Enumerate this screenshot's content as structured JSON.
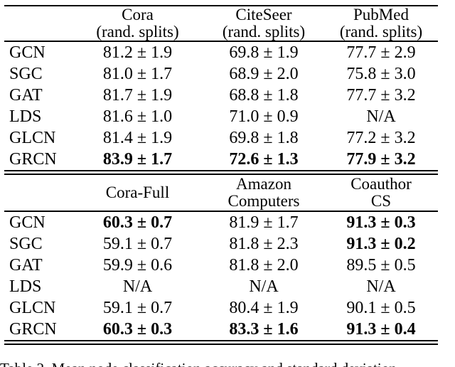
{
  "table": {
    "row_header_labels": [
      "GCN",
      "SGC",
      "GAT",
      "LDS",
      "GLCN",
      "GRCN"
    ],
    "sections": [
      {
        "name": "random-splits-datasets",
        "columns": [
          [
            "Cora",
            "(rand. splits)"
          ],
          [
            "CiteSeer",
            "(rand. splits)"
          ],
          [
            "PubMed",
            "(rand. splits)"
          ]
        ],
        "rows": [
          {
            "model": "GCN",
            "values": [
              {
                "text": "81.2 ± 1.9",
                "bold": false
              },
              {
                "text": "69.8 ± 1.9",
                "bold": false
              },
              {
                "text": "77.7 ± 2.9",
                "bold": false
              }
            ]
          },
          {
            "model": "SGC",
            "values": [
              {
                "text": "81.0 ± 1.7",
                "bold": false
              },
              {
                "text": "68.9 ± 2.0",
                "bold": false
              },
              {
                "text": "75.8 ± 3.0",
                "bold": false
              }
            ]
          },
          {
            "model": "GAT",
            "values": [
              {
                "text": "81.7 ± 1.9",
                "bold": false
              },
              {
                "text": "68.8 ± 1.8",
                "bold": false
              },
              {
                "text": "77.7 ± 3.2",
                "bold": false
              }
            ]
          },
          {
            "model": "LDS",
            "values": [
              {
                "text": "81.6 ± 1.0",
                "bold": false
              },
              {
                "text": "71.0 ± 0.9",
                "bold": false
              },
              {
                "text": "N/A",
                "bold": false
              }
            ]
          },
          {
            "model": "GLCN",
            "values": [
              {
                "text": "81.4 ± 1.9",
                "bold": false
              },
              {
                "text": "69.8 ± 1.8",
                "bold": false
              },
              {
                "text": "77.2 ± 3.2",
                "bold": false
              }
            ]
          },
          {
            "model": "GRCN",
            "values": [
              {
                "text": "83.9 ± 1.7",
                "bold": true
              },
              {
                "text": "72.6 ± 1.3",
                "bold": true
              },
              {
                "text": "77.9 ± 3.2",
                "bold": true
              }
            ]
          }
        ]
      },
      {
        "name": "larger-datasets",
        "columns": [
          [
            "Cora-Full"
          ],
          [
            "Amazon",
            "Computers"
          ],
          [
            "Coauthor",
            "CS"
          ]
        ],
        "rows": [
          {
            "model": "GCN",
            "values": [
              {
                "text": "60.3 ± 0.7",
                "bold": true
              },
              {
                "text": "81.9 ± 1.7",
                "bold": false
              },
              {
                "text": "91.3 ± 0.3",
                "bold": true
              }
            ]
          },
          {
            "model": "SGC",
            "values": [
              {
                "text": "59.1 ± 0.7",
                "bold": false
              },
              {
                "text": "81.8 ± 2.3",
                "bold": false
              },
              {
                "text": "91.3 ± 0.2",
                "bold": true
              }
            ]
          },
          {
            "model": "GAT",
            "values": [
              {
                "text": "59.9 ± 0.6",
                "bold": false
              },
              {
                "text": "81.8 ± 2.0",
                "bold": false
              },
              {
                "text": "89.5 ± 0.5",
                "bold": false
              }
            ]
          },
          {
            "model": "LDS",
            "values": [
              {
                "text": "N/A",
                "bold": false
              },
              {
                "text": "N/A",
                "bold": false
              },
              {
                "text": "N/A",
                "bold": false
              }
            ]
          },
          {
            "model": "GLCN",
            "values": [
              {
                "text": "59.1 ± 0.7",
                "bold": false
              },
              {
                "text": "80.4 ± 1.9",
                "bold": false
              },
              {
                "text": "90.1 ± 0.5",
                "bold": false
              }
            ]
          },
          {
            "model": "GRCN",
            "values": [
              {
                "text": "60.3 ± 0.3",
                "bold": true
              },
              {
                "text": "83.3 ± 1.6",
                "bold": true
              },
              {
                "text": "91.3 ± 0.4",
                "bold": true
              }
            ]
          }
        ]
      }
    ]
  },
  "caption": {
    "text": "Table 2. Mean node classification accuracy and standard deviation"
  },
  "colors": {
    "text": "#000000",
    "background": "#ffffff",
    "rule": "#000000"
  }
}
